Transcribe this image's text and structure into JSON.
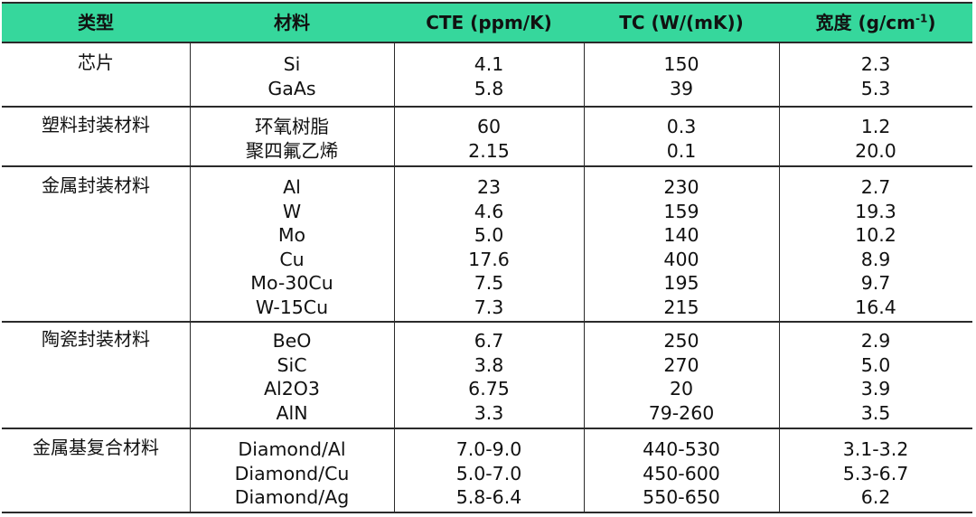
{
  "headers": {
    "type": "类型",
    "material": "材料",
    "cte": "CTE (ppm/K)",
    "tc": "TC (W/(mK))",
    "density_text": "宽度 (g/cm",
    "density_sup": "-1",
    "density_close": ")"
  },
  "groups": [
    {
      "category": "芯片",
      "rows": [
        {
          "material": "Si",
          "cte": "4.1",
          "tc": "150",
          "density": "2.3"
        },
        {
          "material": "GaAs",
          "cte": "5.8",
          "tc": "39",
          "density": "5.3"
        }
      ]
    },
    {
      "category": "塑料封装材料",
      "rows": [
        {
          "material": "环氧树脂",
          "cte": "60",
          "tc": "0.3",
          "density": "1.2"
        },
        {
          "material": "聚四氟乙烯",
          "cte": "2.15",
          "tc": "0.1",
          "density": "20.0"
        }
      ]
    },
    {
      "category": "金属封装材料",
      "rows": [
        {
          "material": "Al",
          "cte": "23",
          "tc": "230",
          "density": "2.7"
        },
        {
          "material": "W",
          "cte": "4.6",
          "tc": "159",
          "density": "19.3"
        },
        {
          "material": "Mo",
          "cte": "5.0",
          "tc": "140",
          "density": "10.2"
        },
        {
          "material": "Cu",
          "cte": "17.6",
          "tc": "400",
          "density": "8.9"
        },
        {
          "material": "Mo-30Cu",
          "cte": "7.5",
          "tc": "195",
          "density": "9.7"
        },
        {
          "material": "W-15Cu",
          "cte": "7.3",
          "tc": "215",
          "density": "16.4"
        }
      ]
    },
    {
      "category": "陶瓷封装材料",
      "rows": [
        {
          "material": "BeO",
          "cte": "6.7",
          "tc": "250",
          "density": "2.9"
        },
        {
          "material": "SiC",
          "cte": "3.8",
          "tc": "270",
          "density": "5.0"
        },
        {
          "material": "Al2O3",
          "cte": "6.75",
          "tc": "20",
          "density": "3.9"
        },
        {
          "material": "AlN",
          "cte": "3.3",
          "tc": "79-260",
          "density": "3.5"
        }
      ]
    },
    {
      "category": "金属基复合材料",
      "rows": [
        {
          "material": "Diamond/Al",
          "cte": "7.0-9.0",
          "tc": "440-530",
          "density": "3.1-3.2"
        },
        {
          "material": "Diamond/Cu",
          "cte": "5.0-7.0",
          "tc": "450-600",
          "density": "5.3-6.7"
        },
        {
          "material": "Diamond/Ag",
          "cte": "5.8-6.4",
          "tc": "550-650",
          "density": "6.2"
        }
      ]
    }
  ],
  "colors": {
    "header_bg": "#36d79c",
    "rule": "#2a2a2a"
  }
}
